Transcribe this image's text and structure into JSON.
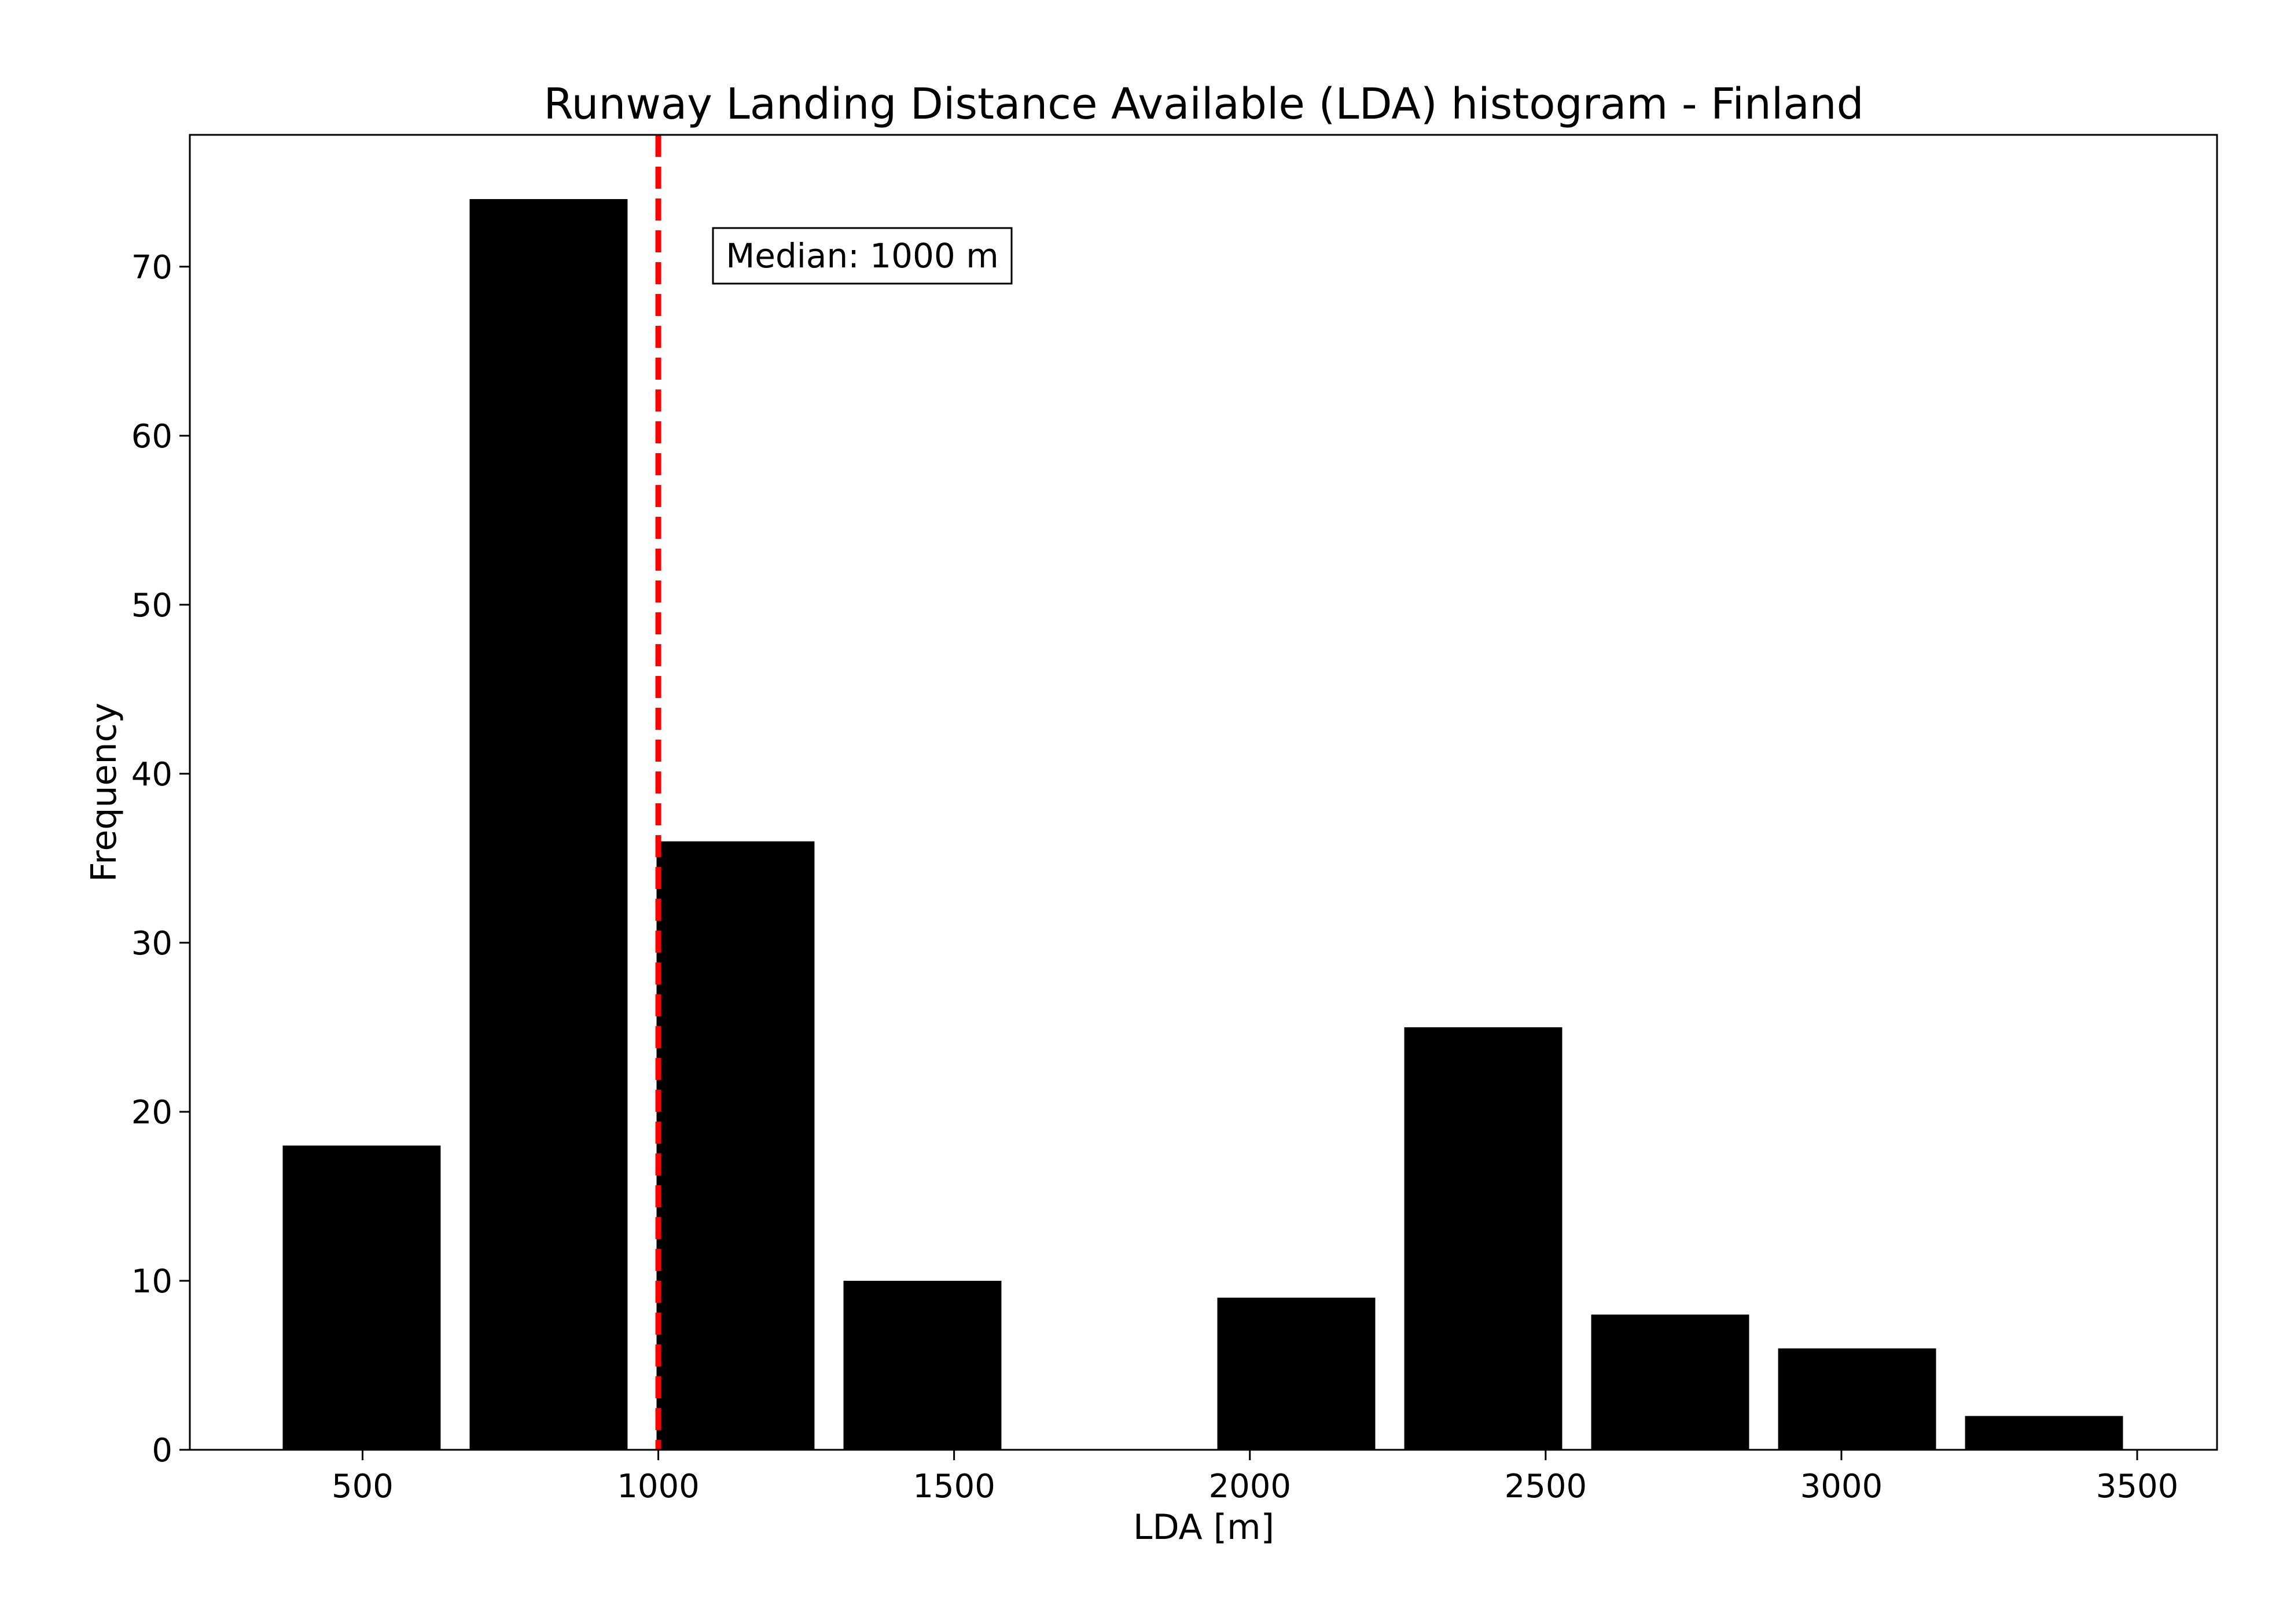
{
  "chart_data": {
    "type": "bar",
    "title": "Runway Landing Distance Available (LDA) histogram - Finland",
    "xlabel": "LDA [m]",
    "ylabel": "Frequency",
    "xlim": [
      208,
      3635
    ],
    "ylim": [
      0,
      77.8
    ],
    "xticks": [
      500,
      1000,
      1500,
      2000,
      2500,
      3000,
      3500
    ],
    "yticks": [
      0,
      10,
      20,
      30,
      40,
      50,
      60,
      70
    ],
    "bins": [
      {
        "x0": 365,
        "x1": 632,
        "value": 18
      },
      {
        "x0": 681,
        "x1": 948,
        "value": 74
      },
      {
        "x0": 997,
        "x1": 1264,
        "value": 36
      },
      {
        "x0": 1313,
        "x1": 1580,
        "value": 10
      },
      {
        "x0": 1629,
        "x1": 1896,
        "value": 0
      },
      {
        "x0": 1945,
        "x1": 2212,
        "value": 9
      },
      {
        "x0": 2261,
        "x1": 2528,
        "value": 25
      },
      {
        "x0": 2577,
        "x1": 2844,
        "value": 8
      },
      {
        "x0": 2893,
        "x1": 3160,
        "value": 6
      },
      {
        "x0": 3209,
        "x1": 3476,
        "value": 2
      }
    ],
    "bar_color": "#000000",
    "median": {
      "value": 1000,
      "label": "Median: 1000 m",
      "color": "#ff0000"
    },
    "grid": false,
    "legend": "none"
  }
}
